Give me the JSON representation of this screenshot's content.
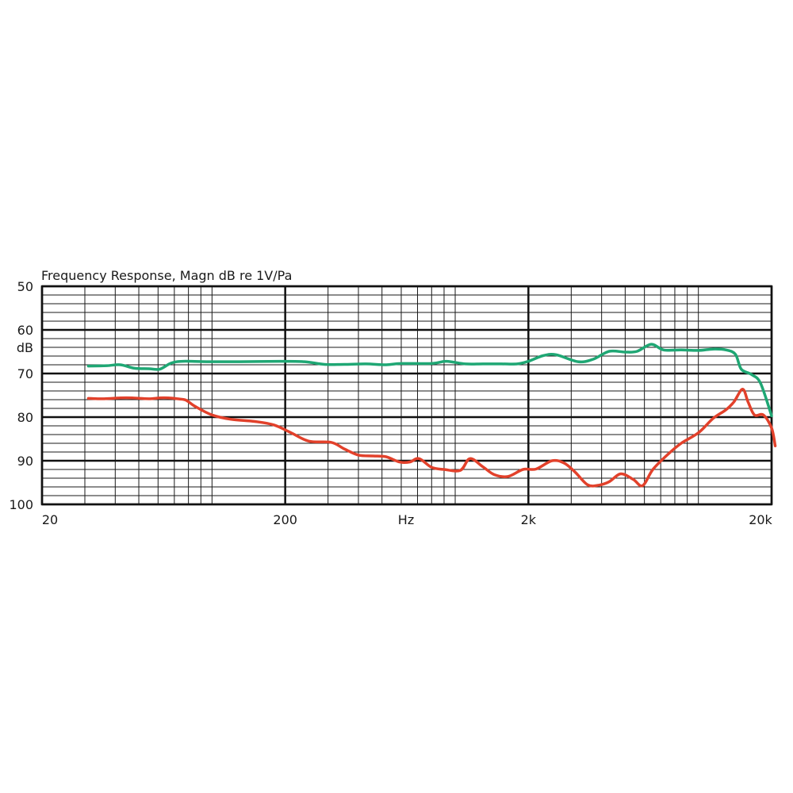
{
  "chart_data": {
    "type": "line",
    "title": "Frequency Response, Magn  dB re 1V/Pa",
    "xlabel": "Hz",
    "ylabel": "dB",
    "x_scale": "log",
    "xlim": [
      20,
      20000
    ],
    "ylim": [
      100,
      50
    ],
    "y_inverted": true,
    "grid": true,
    "x_ticks": [
      {
        "value": 20,
        "label": "20"
      },
      {
        "value": 200,
        "label": "200"
      },
      {
        "value": 2000,
        "label": "2k"
      },
      {
        "value": 20000,
        "label": "20k"
      }
    ],
    "y_ticks": [
      {
        "value": 50,
        "label": "50"
      },
      {
        "value": 60,
        "label": "60"
      },
      {
        "value": 70,
        "label": "70"
      },
      {
        "value": 80,
        "label": "80"
      },
      {
        "value": 90,
        "label": "90"
      },
      {
        "value": 100,
        "label": "100"
      }
    ],
    "series": [
      {
        "color": "#1fa774",
        "points": [
          [
            31,
            68.3
          ],
          [
            37,
            68.2
          ],
          [
            42,
            68.0
          ],
          [
            48,
            68.8
          ],
          [
            55,
            68.9
          ],
          [
            61,
            69.0
          ],
          [
            68,
            67.6
          ],
          [
            76,
            67.2
          ],
          [
            95,
            67.3
          ],
          [
            130,
            67.3
          ],
          [
            190,
            67.2
          ],
          [
            240,
            67.3
          ],
          [
            290,
            67.9
          ],
          [
            350,
            67.9
          ],
          [
            430,
            67.8
          ],
          [
            520,
            68.0
          ],
          [
            600,
            67.7
          ],
          [
            800,
            67.7
          ],
          [
            920,
            67.2
          ],
          [
            1100,
            67.8
          ],
          [
            1300,
            67.8
          ],
          [
            1550,
            67.8
          ],
          [
            1800,
            67.8
          ],
          [
            2000,
            67.2
          ],
          [
            2300,
            65.9
          ],
          [
            2600,
            65.7
          ],
          [
            3200,
            67.3
          ],
          [
            3700,
            66.7
          ],
          [
            4300,
            64.9
          ],
          [
            5000,
            65.1
          ],
          [
            5600,
            64.9
          ],
          [
            6400,
            63.3
          ],
          [
            7200,
            64.6
          ],
          [
            8500,
            64.6
          ],
          [
            10000,
            64.7
          ],
          [
            11500,
            64.4
          ],
          [
            13000,
            64.6
          ],
          [
            14200,
            65.6
          ],
          [
            15000,
            69.0
          ],
          [
            16500,
            70.2
          ],
          [
            18000,
            72.2
          ],
          [
            20000,
            79.7
          ]
        ]
      },
      {
        "color": "#e2412b",
        "points": [
          [
            31,
            75.7
          ],
          [
            36,
            75.8
          ],
          [
            42,
            75.6
          ],
          [
            47,
            75.6
          ],
          [
            55,
            75.8
          ],
          [
            61,
            75.6
          ],
          [
            66,
            75.6
          ],
          [
            72,
            75.8
          ],
          [
            78,
            76.1
          ],
          [
            85,
            77.5
          ],
          [
            100,
            79.5
          ],
          [
            120,
            80.5
          ],
          [
            150,
            81.0
          ],
          [
            180,
            81.8
          ],
          [
            210,
            83.5
          ],
          [
            250,
            85.5
          ],
          [
            310,
            85.8
          ],
          [
            350,
            87.3
          ],
          [
            400,
            88.7
          ],
          [
            460,
            88.9
          ],
          [
            520,
            89.1
          ],
          [
            590,
            90.3
          ],
          [
            650,
            90.3
          ],
          [
            710,
            89.5
          ],
          [
            800,
            91.5
          ],
          [
            900,
            92.0
          ],
          [
            1050,
            92.2
          ],
          [
            1150,
            89.5
          ],
          [
            1300,
            91.4
          ],
          [
            1450,
            93.2
          ],
          [
            1650,
            93.6
          ],
          [
            1900,
            92.0
          ],
          [
            2150,
            91.9
          ],
          [
            2500,
            90.0
          ],
          [
            2800,
            90.5
          ],
          [
            3100,
            92.5
          ],
          [
            3500,
            95.5
          ],
          [
            3900,
            95.6
          ],
          [
            4300,
            94.8
          ],
          [
            4800,
            93.0
          ],
          [
            5400,
            94.3
          ],
          [
            5900,
            95.7
          ],
          [
            6500,
            92.0
          ],
          [
            7500,
            88.5
          ],
          [
            8500,
            86.0
          ],
          [
            10000,
            83.6
          ],
          [
            11500,
            80.3
          ],
          [
            13000,
            78.3
          ],
          [
            14000,
            76.5
          ],
          [
            15200,
            73.6
          ],
          [
            16000,
            76.5
          ],
          [
            17000,
            79.5
          ],
          [
            18500,
            79.5
          ],
          [
            20000,
            82.5
          ],
          [
            20700,
            86.6
          ]
        ]
      }
    ]
  }
}
